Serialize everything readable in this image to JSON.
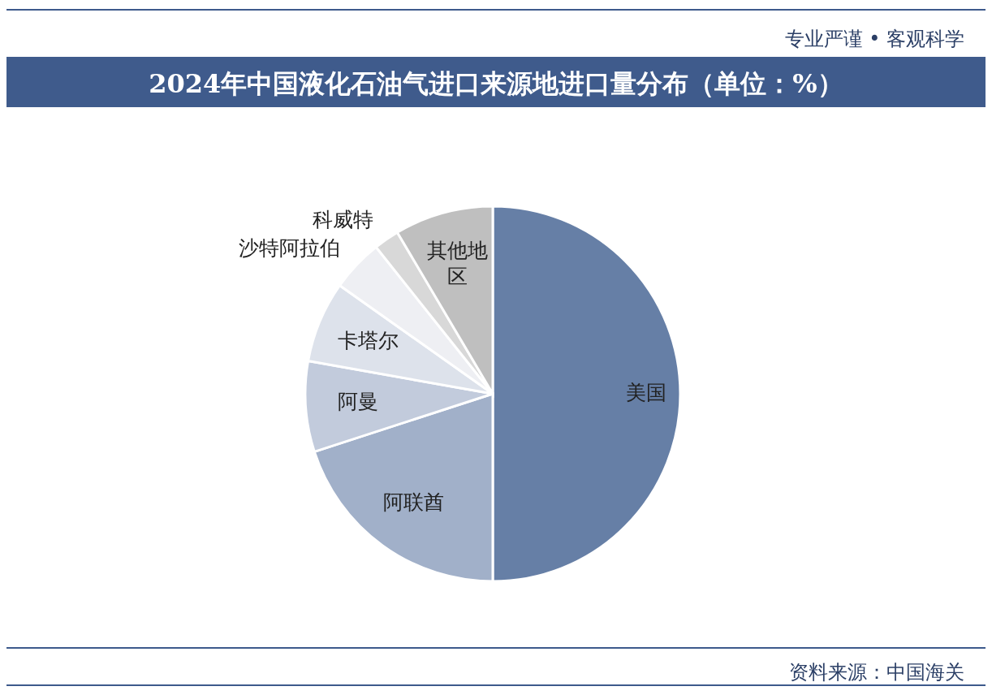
{
  "chart_data": {
    "type": "pie",
    "title": "2024年中国液化石油气进口来源地进口量分布（单位：%）",
    "categories": [
      "美国",
      "阿联酋",
      "阿曼",
      "卡塔尔",
      "沙特阿拉伯",
      "科威特",
      "其他地区"
    ],
    "values": [
      50,
      20,
      7.8,
      7,
      4.5,
      2.2,
      8.5
    ],
    "colors": [
      "#667fa6",
      "#a1b0c9",
      "#c2cbdc",
      "#dde2eb",
      "#eeeff3",
      "#d8d8d8",
      "#bfbfbf"
    ],
    "annotations": [
      "专业严谨 • 客观科学",
      "资料来源：中国海关"
    ]
  }
}
